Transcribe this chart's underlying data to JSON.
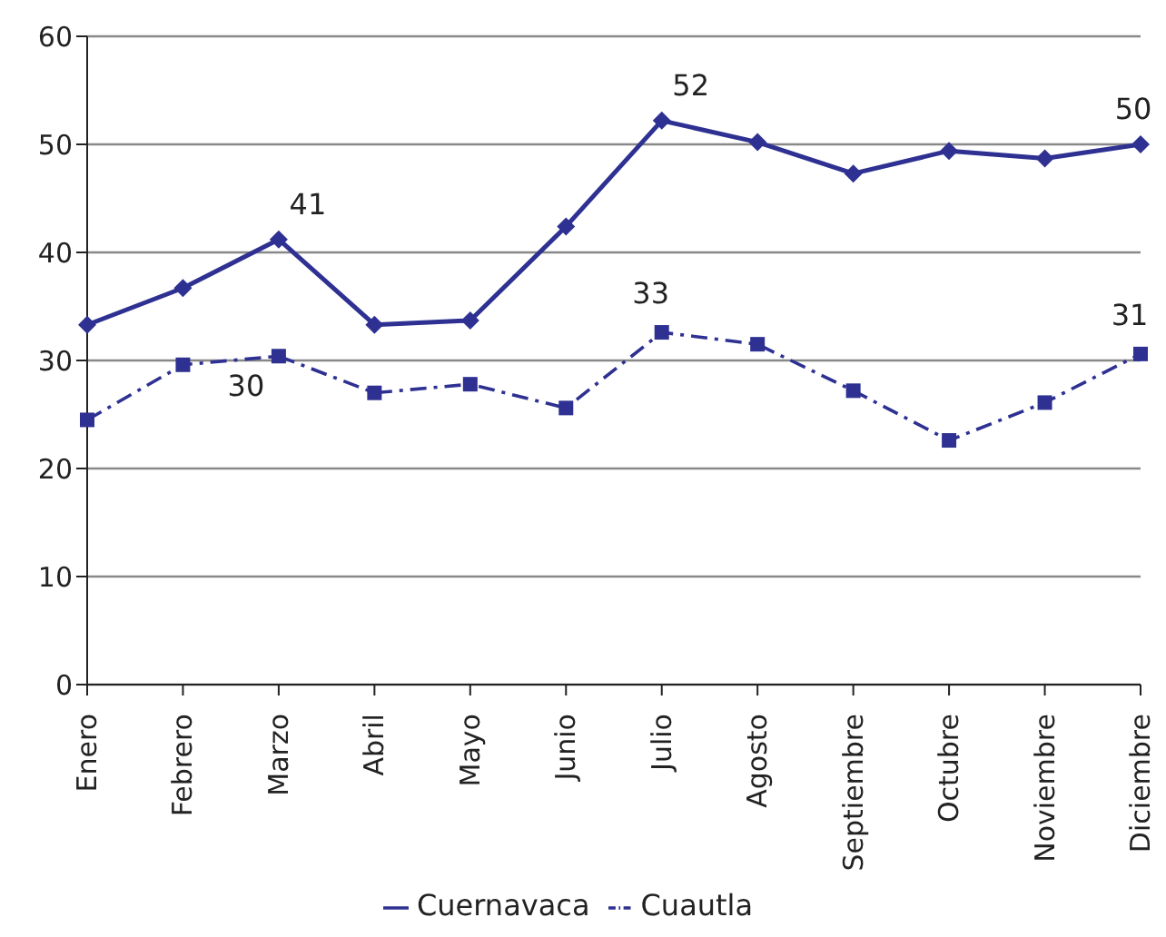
{
  "chart_data": {
    "type": "line",
    "categories": [
      "Enero",
      "Febrero",
      "Marzo",
      "Abril",
      "Mayo",
      "Junio",
      "Julio",
      "Agosto",
      "Septiembre",
      "Octubre",
      "Noviembre",
      "Diciembre"
    ],
    "series": [
      {
        "name": "Cuernavaca",
        "color": "#2e3192",
        "marker": "diamond",
        "line_style": "solid",
        "values": [
          33.3,
          36.7,
          41.2,
          33.3,
          33.7,
          42.4,
          52.2,
          50.2,
          47.3,
          49.4,
          48.7,
          50
        ],
        "value_labels": [
          null,
          null,
          "41",
          null,
          null,
          null,
          "52",
          null,
          null,
          null,
          null,
          "50"
        ]
      },
      {
        "name": "Cuautla",
        "color": "#2e3192",
        "marker": "square",
        "line_style": "dashed",
        "values": [
          24.5,
          29.6,
          30.4,
          27,
          27.8,
          25.6,
          32.6,
          31.5,
          27.2,
          22.6,
          26.1,
          30.6
        ],
        "value_labels": [
          null,
          null,
          "30",
          null,
          null,
          null,
          "33",
          null,
          null,
          null,
          null,
          "31"
        ]
      }
    ],
    "ylim": [
      0,
      60
    ],
    "yticks": [
      0,
      10,
      20,
      30,
      40,
      50,
      60
    ],
    "grid": "y",
    "legend": "bottom"
  }
}
